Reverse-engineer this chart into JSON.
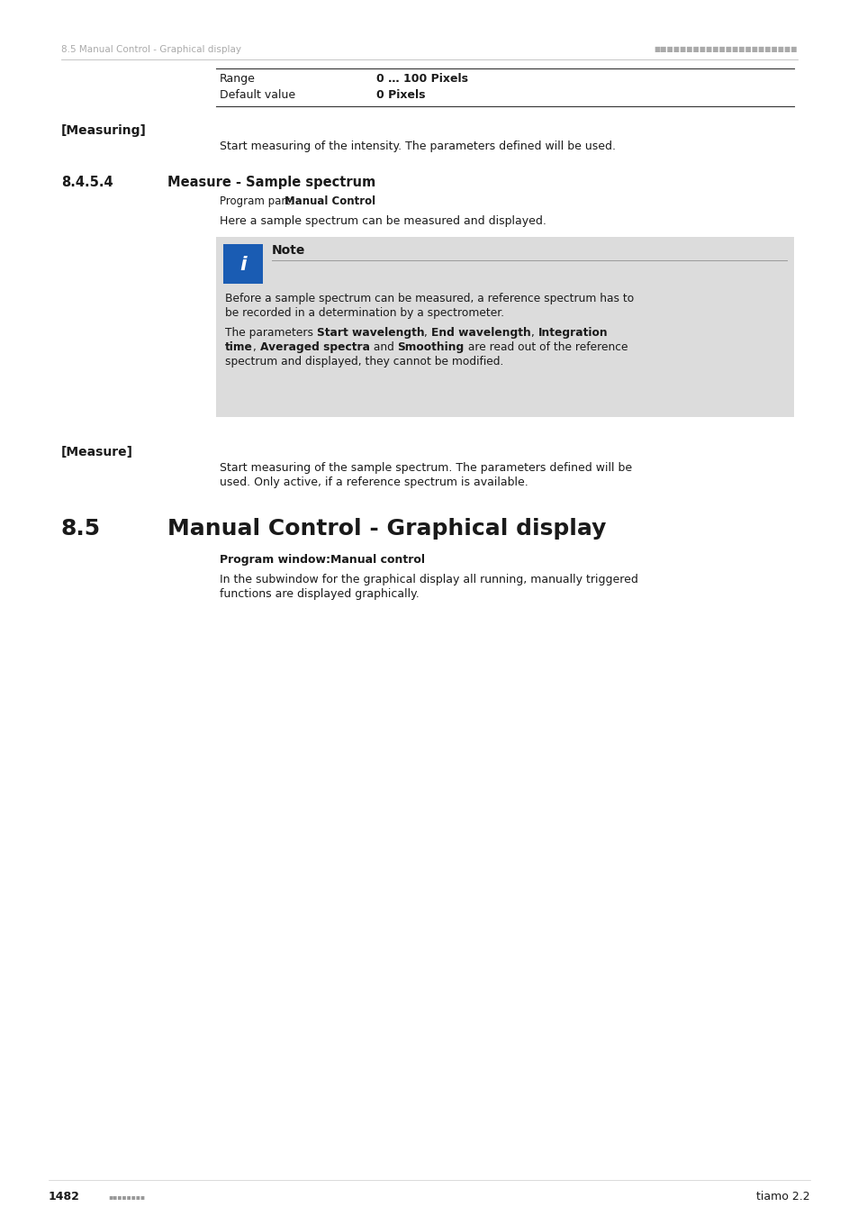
{
  "page_bg": "#ffffff",
  "header_text_left": "8.5 Manual Control - Graphical display",
  "footer_text_right": "tiamo 2.2",
  "table_row1_label": "Range",
  "table_row1_value": "0 … 100 Pixels",
  "table_row2_label": "Default value",
  "table_row2_value": "0 Pixels",
  "section_measuring_label": "[Measuring]",
  "section_measuring_text": "Start measuring of the intensity. The parameters defined will be used.",
  "section_845_number": "8.4.5.4",
  "section_845_title": "Measure - Sample spectrum",
  "section_845_program_prefix": "Program part: ",
  "section_845_program_value": "Manual Control",
  "section_845_intro": "Here a sample spectrum can be measured and displayed.",
  "note_title": "Note",
  "note_para1_line1": "Before a sample spectrum can be measured, a reference spectrum has to",
  "note_para1_line2": "be recorded in a determination by a spectrometer.",
  "note_para2_line1_plain": "The parameters ",
  "note_para2_line1_b1": "Start wavelength",
  "note_para2_line1_c1": ", ",
  "note_para2_line1_b2": "End wavelength",
  "note_para2_line1_c2": ", ",
  "note_para2_line1_b3": "Integration",
  "note_para2_line2_b3cont": "time",
  "note_para2_line2_c3": ", ",
  "note_para2_line2_b4": "Averaged spectra",
  "note_para2_line2_c4": " and ",
  "note_para2_line2_b5": "Smoothing",
  "note_para2_line2_suffix": " are read out of the reference",
  "note_para2_line3": "spectrum and displayed, they cannot be modified.",
  "section_measure_label": "[Measure]",
  "section_measure_line1": "Start measuring of the sample spectrum. The parameters defined will be",
  "section_measure_line2": "used. Only active, if a reference spectrum is available.",
  "section_85_number": "8.5",
  "section_85_title": "Manual Control - Graphical display",
  "section_85_program_combined": "Program window:Manual control",
  "section_85_intro_line1": "In the subwindow for the graphical display all running, manually triggered",
  "section_85_intro_line2": "functions are displayed graphically.",
  "info_icon_bg": "#1a5cb3",
  "note_box_bg": "#dcdcdc",
  "header_color": "#aaaaaa",
  "text_color": "#1a1a1a",
  "line_color": "#888888",
  "table_line_color": "#333333",
  "footer_dot_color": "#999999"
}
